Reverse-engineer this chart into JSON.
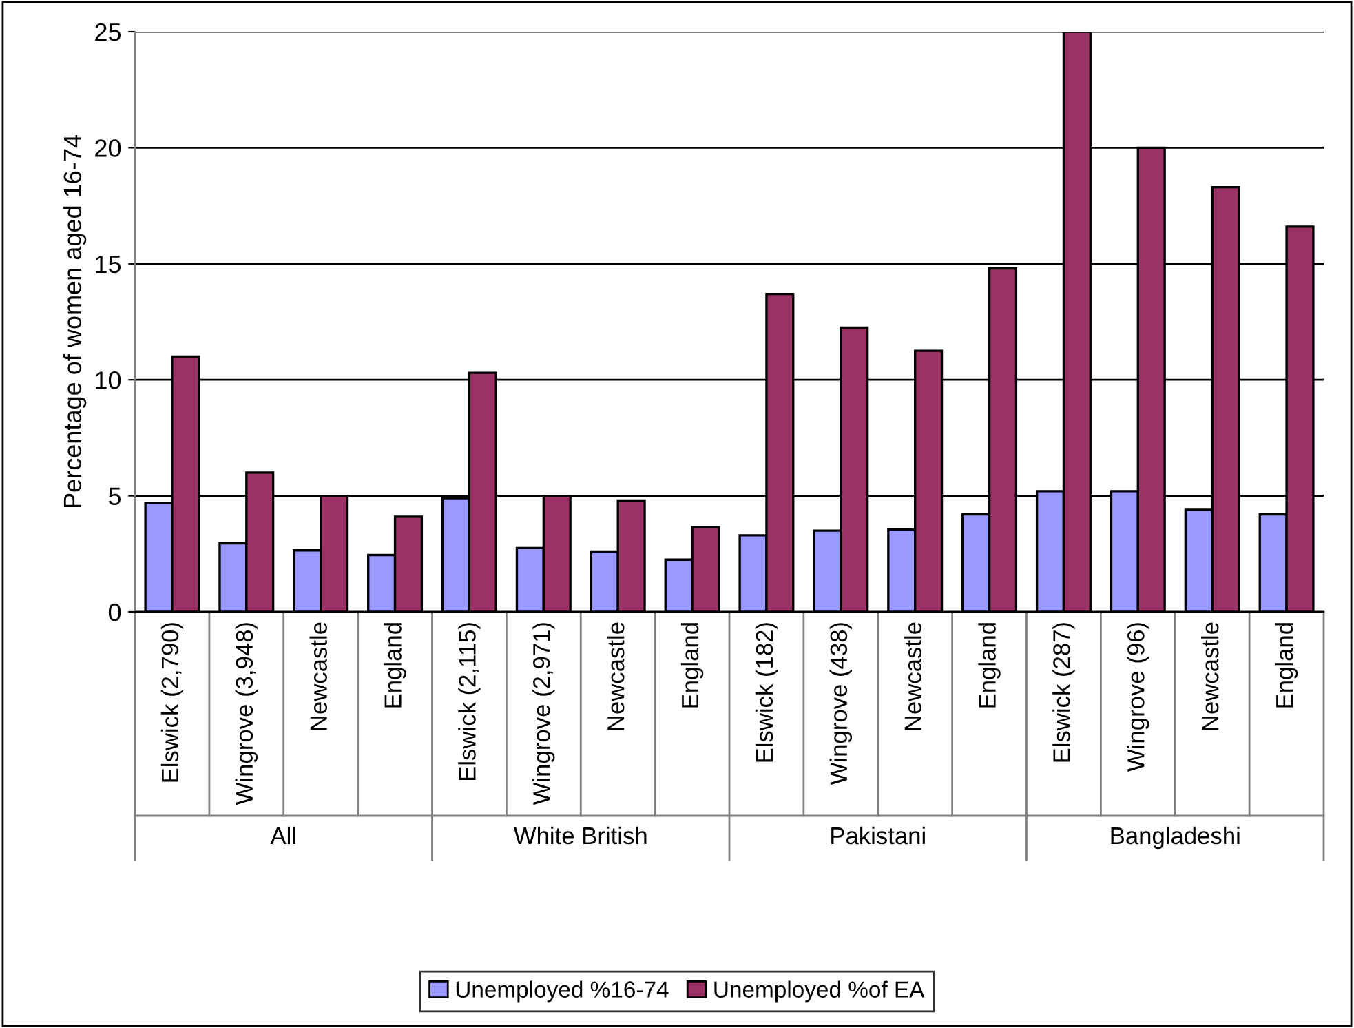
{
  "chart_data": {
    "type": "bar",
    "ylabel": "Percentage of women aged 16-74",
    "categories": [
      "Elswick (2,790)",
      "Wingrove (3,948)",
      "Newcastle",
      "England",
      "Elswick (2,115)",
      "Wingrove (2,971)",
      "Newcastle",
      "England",
      "Elswick (182)",
      "Wingrove (438)",
      "Newcastle",
      "England",
      "Elswick (287)",
      "Wingrove (96)",
      "Newcastle",
      "England"
    ],
    "series": [
      {
        "name": "Unemployed %16-74",
        "color": "#9999ff",
        "values": [
          4.7,
          2.95,
          2.65,
          2.45,
          4.9,
          2.75,
          2.6,
          2.25,
          3.3,
          3.5,
          3.55,
          4.2,
          5.2,
          5.2,
          4.4,
          4.2
        ]
      },
      {
        "name": "Unemployed %of EA",
        "color": "#993366",
        "values": [
          11.0,
          6.0,
          5.0,
          4.1,
          10.3,
          5.0,
          4.8,
          3.65,
          13.7,
          12.25,
          11.25,
          14.8,
          25.0,
          20.0,
          18.3,
          16.6
        ]
      }
    ],
    "annotations": [
      "All",
      "White British",
      "Pakistani",
      "Bangladeshi"
    ],
    "ylim": [
      0,
      25
    ],
    "yticks": [
      0,
      5,
      10,
      15,
      20,
      25
    ],
    "grid": "y",
    "legend": "bottom"
  }
}
